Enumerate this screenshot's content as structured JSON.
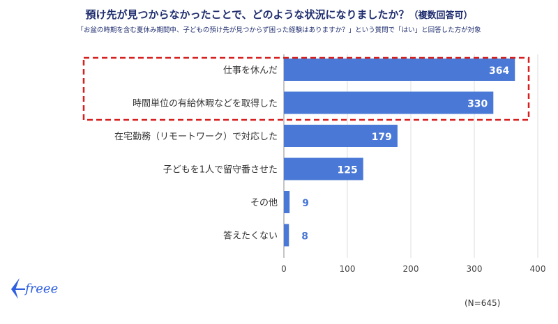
{
  "chart_data": {
    "type": "bar",
    "orientation": "horizontal",
    "title": "預け先が見つからなかったことで、どのような状況になりましたか？",
    "title_note": "（複数回答可）",
    "subtitle": "「お盆の時期を含む夏休み期間中、子どもの預け先が見つからず困った経験はありますか？」という質問で「はい」と回答した方が対象",
    "categories": [
      "仕事を休んだ",
      "時間単位の有給休暇などを取得した",
      "在宅勤務（リモートワーク）で対応した",
      "子どもを1人で留守番させた",
      "その他",
      "答えたくない"
    ],
    "values": [
      364,
      330,
      179,
      125,
      9,
      8
    ],
    "xlim": [
      0,
      400
    ],
    "xticks": [
      "0",
      "100",
      "200",
      "300",
      "400"
    ],
    "grid": true,
    "highlighted_categories": [
      "仕事を休んだ",
      "時間単位の有給休暇などを取得した"
    ],
    "colors": {
      "bar": "#4a78d6",
      "highlight_box": "#d62020",
      "title": "#1f2d6e"
    },
    "sample_note": "(N=645)"
  },
  "logo": {
    "text": "freee",
    "color": "#2f5fe0"
  }
}
